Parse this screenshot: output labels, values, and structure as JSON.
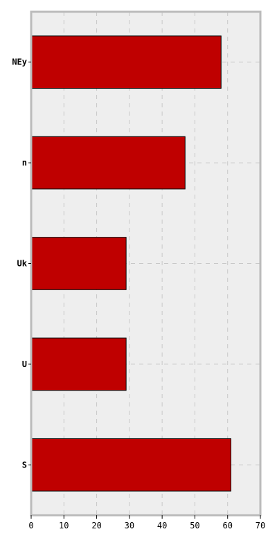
{
  "chart_data": {
    "type": "bar",
    "orientation": "horizontal",
    "title": "",
    "xlabel": "",
    "ylabel": "",
    "categories": [
      "NEy",
      "n",
      "Uk",
      "U",
      "S"
    ],
    "values": [
      58,
      47,
      29,
      29,
      61
    ],
    "xlim": [
      0,
      70
    ],
    "xticks": [
      0,
      10,
      20,
      30,
      40,
      50,
      60,
      70
    ],
    "grid": true,
    "legend": "none",
    "colors": {
      "bar": "#bf0000",
      "bar_edge": "#000000",
      "plot_background": "#eeeeee",
      "frame": "#bbbbbb",
      "grid": "#c8c8c8"
    }
  }
}
